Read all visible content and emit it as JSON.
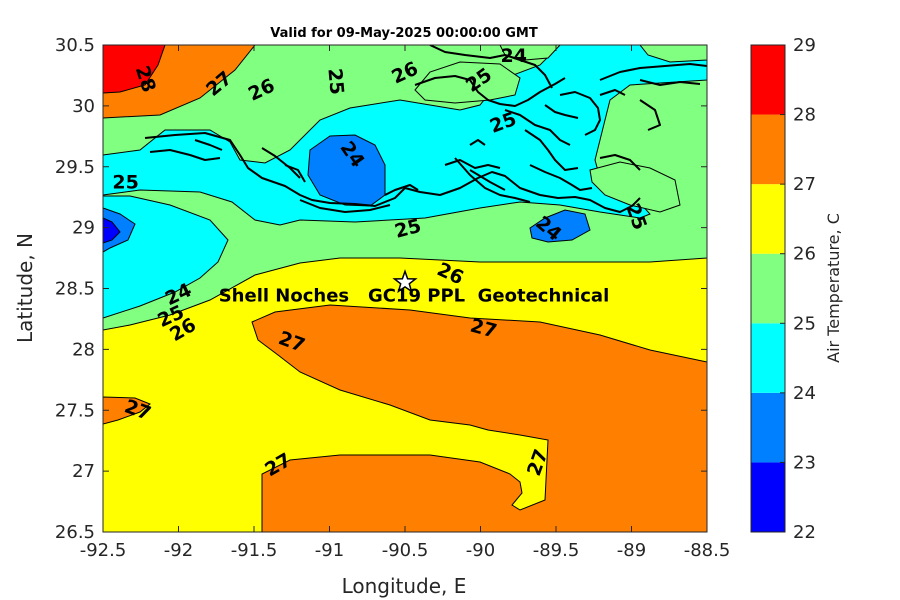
{
  "chart_data": {
    "type": "contour-map",
    "title": "Valid for 09-May-2025 00:00:00 GMT",
    "xlabel": "Longitude, E",
    "ylabel": "Latitude, N",
    "xlim": [
      -92.5,
      -88.5
    ],
    "ylim": [
      26.5,
      30.5
    ],
    "xticks": [
      -92.5,
      -92,
      -91.5,
      -91,
      -90.5,
      -90,
      -89.5,
      -89,
      -88.5
    ],
    "yticks": [
      26.5,
      27,
      27.5,
      28,
      28.5,
      29,
      29.5,
      30,
      30.5
    ],
    "xtick_labels": [
      "-92.5",
      "-92",
      "-91.5",
      "-91",
      "-90.5",
      "-90",
      "-89.5",
      "-89",
      "-88.5"
    ],
    "ytick_labels": [
      "26.5",
      "27",
      "27.5",
      "28",
      "28.5",
      "29",
      "29.5",
      "30",
      "30.5"
    ],
    "colorbar": {
      "label": "Air Temperature, C",
      "levels": [
        22,
        23,
        24,
        25,
        26,
        27,
        28,
        29
      ],
      "tick_labels": [
        "22",
        "23",
        "24",
        "25",
        "26",
        "27",
        "28",
        "29"
      ],
      "colors": [
        "#0000ff",
        "#0080ff",
        "#00ffff",
        "#80ff80",
        "#ffff00",
        "#ff8000",
        "#ff0000",
        "#800000"
      ]
    },
    "contour_labels": [
      {
        "text": "28",
        "x": -92.22,
        "y": 30.22
      },
      {
        "text": "27",
        "x": -91.73,
        "y": 30.18
      },
      {
        "text": "26",
        "x": -91.45,
        "y": 30.13
      },
      {
        "text": "25",
        "x": -90.96,
        "y": 30.2
      },
      {
        "text": "26",
        "x": -90.5,
        "y": 30.27
      },
      {
        "text": "25",
        "x": -90.01,
        "y": 30.21
      },
      {
        "text": "24",
        "x": -89.78,
        "y": 30.41
      },
      {
        "text": "25",
        "x": -89.85,
        "y": 29.86
      },
      {
        "text": "24",
        "x": -90.85,
        "y": 29.6
      },
      {
        "text": "25",
        "x": -92.35,
        "y": 29.37
      },
      {
        "text": "25",
        "x": -90.48,
        "y": 28.99
      },
      {
        "text": "24",
        "x": -89.55,
        "y": 28.99
      },
      {
        "text": "25",
        "x": -88.97,
        "y": 29.09
      },
      {
        "text": "26",
        "x": -90.2,
        "y": 28.62
      },
      {
        "text": "24",
        "x": -92.0,
        "y": 28.45
      },
      {
        "text": "25",
        "x": -92.05,
        "y": 28.27
      },
      {
        "text": "26",
        "x": -91.97,
        "y": 28.16
      },
      {
        "text": "27",
        "x": -91.25,
        "y": 28.06
      },
      {
        "text": "27",
        "x": -89.98,
        "y": 28.17
      },
      {
        "text": "27",
        "x": -92.27,
        "y": 27.5
      },
      {
        "text": "27",
        "x": -91.34,
        "y": 27.05
      },
      {
        "text": "27",
        "x": -89.62,
        "y": 27.07
      }
    ],
    "annotation": {
      "text": "Shell Noches   GC19 PPL  Geotechnical",
      "x": -90.5,
      "y": 28.55,
      "marker": "star"
    }
  }
}
